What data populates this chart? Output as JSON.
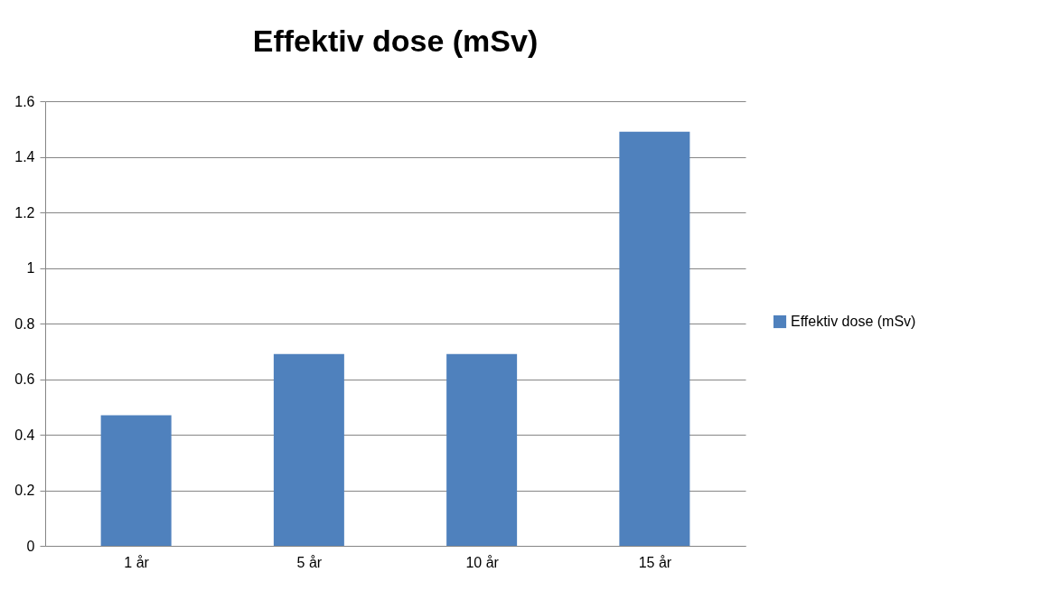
{
  "chart_data": {
    "type": "bar",
    "title": "Effektiv dose (mSv)",
    "categories": [
      "1 år",
      "5 år",
      "10 år",
      "15 år"
    ],
    "series": [
      {
        "name": "Effektiv dose (mSv)",
        "color": "#4f81bd",
        "values": [
          0.47,
          0.69,
          0.69,
          1.49
        ]
      }
    ],
    "ylim": [
      0,
      1.6
    ],
    "yticks": [
      0,
      0.2,
      0.4,
      0.6,
      0.8,
      1,
      1.2,
      1.4,
      1.6
    ],
    "grid": "y",
    "legend": "right"
  }
}
